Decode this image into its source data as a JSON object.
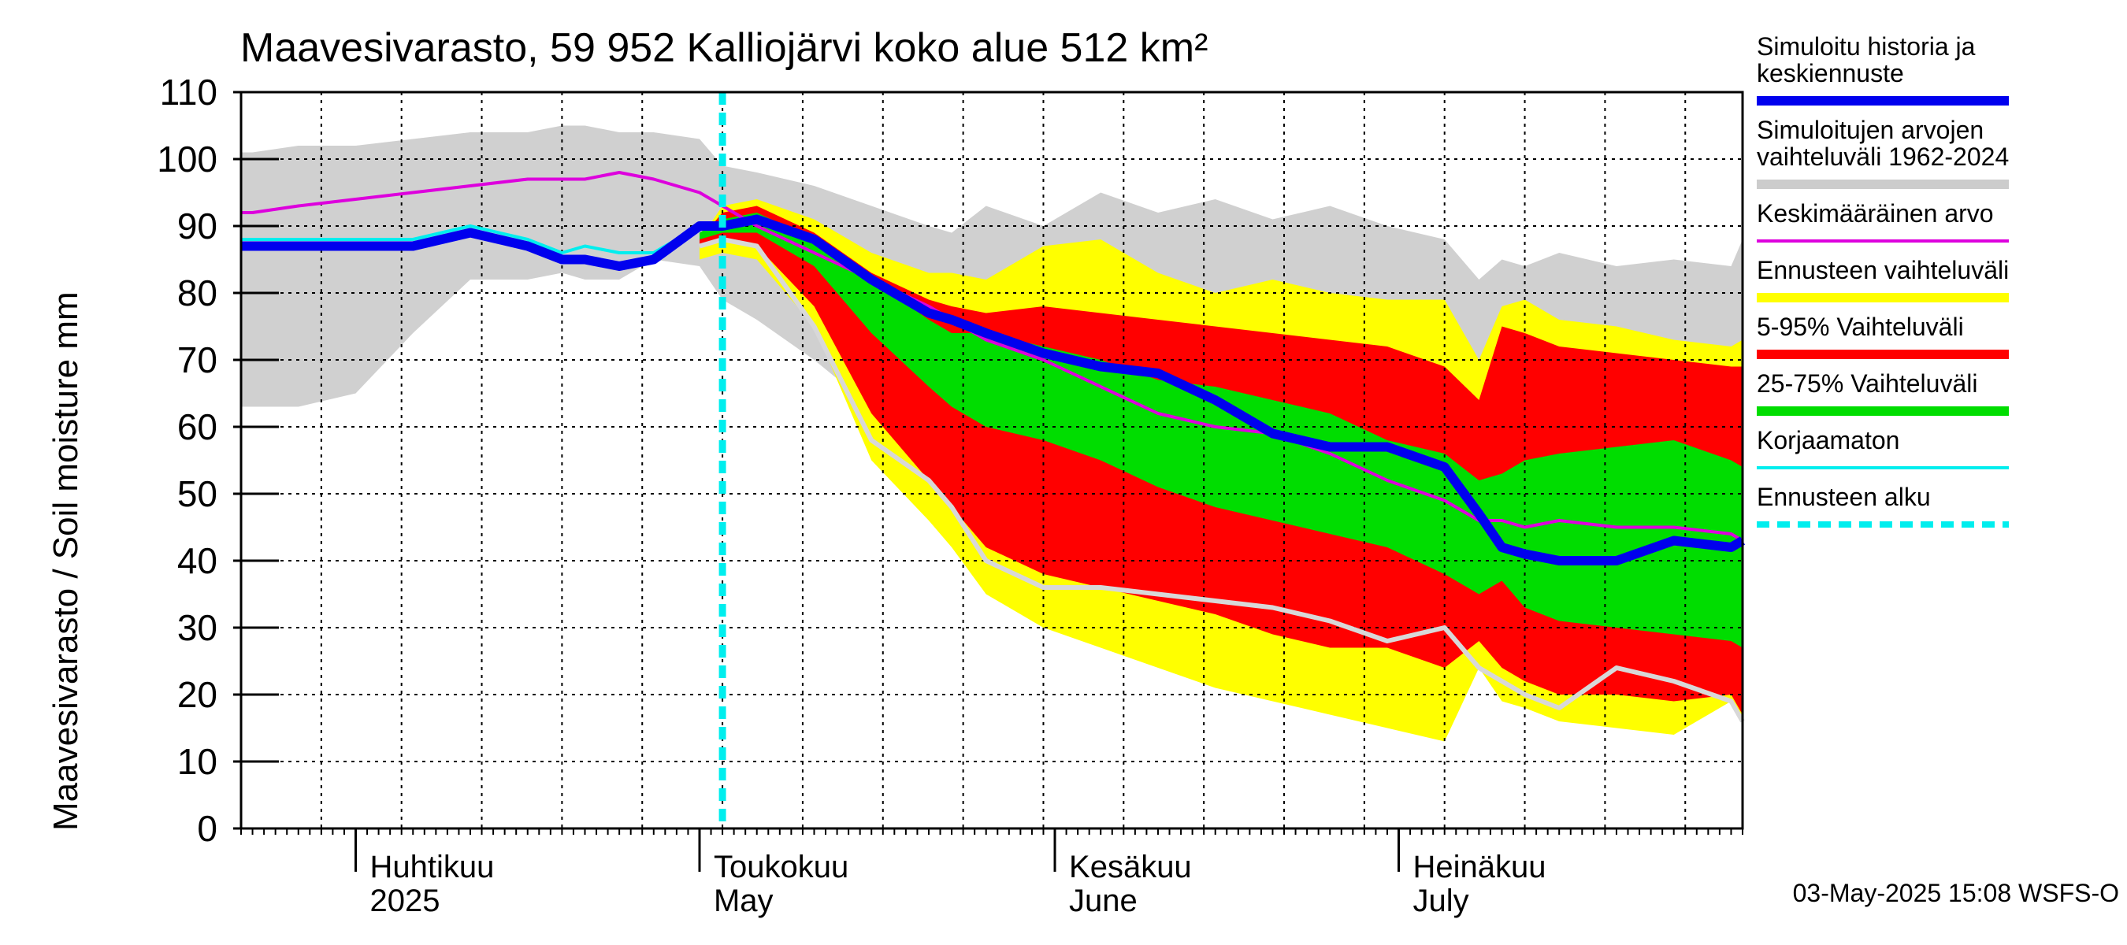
{
  "chart_data": {
    "type": "area",
    "title": "Maavesivarasto, 59 952 Kalliojärvi koko alue 512 km²",
    "ylabel": "Maavesivarasto / Soil moisture   mm",
    "ylim": [
      0,
      110
    ],
    "yticks": [
      0,
      10,
      20,
      30,
      40,
      50,
      60,
      70,
      80,
      90,
      100,
      110
    ],
    "xlim": [
      "2025-03-22",
      "2025-07-31"
    ],
    "forecast_start": "2025-05-03",
    "month_labels": [
      {
        "fi": "Huhtikuu",
        "en": "2025",
        "date": "2025-04-01"
      },
      {
        "fi": "Toukokuu",
        "en": "May",
        "date": "2025-05-01"
      },
      {
        "fi": "Kesäkuu",
        "en": "June",
        "date": "2025-06-01"
      },
      {
        "fi": "Heinäkuu",
        "en": "July",
        "date": "2025-07-01"
      }
    ],
    "x_days": [
      0,
      1,
      5,
      10,
      15,
      20,
      25,
      28,
      30,
      33,
      36,
      40,
      42,
      45,
      50,
      55,
      60,
      62,
      65,
      70,
      75,
      80,
      85,
      90,
      95,
      100,
      105,
      108,
      110,
      112,
      115,
      120,
      125,
      130,
      131
    ],
    "series": [
      {
        "name": "historical_range",
        "color": "#d0d0d0",
        "upper": [
          101,
          101,
          102,
          102,
          103,
          104,
          104,
          105,
          105,
          104,
          104,
          103,
          99,
          98,
          96,
          93,
          90,
          89,
          93,
          90,
          95,
          92,
          94,
          91,
          93,
          90,
          88,
          82,
          85,
          84,
          86,
          84,
          85,
          84,
          88
        ],
        "lower": [
          63,
          63,
          63,
          65,
          74,
          82,
          82,
          83,
          82,
          82,
          85,
          84,
          79,
          76,
          70,
          63,
          58,
          56,
          55,
          55,
          52,
          51,
          48,
          47,
          46,
          44,
          44,
          42,
          42,
          42,
          41,
          41,
          40,
          40,
          40
        ]
      },
      {
        "name": "forecast_range",
        "color": "#ffff00",
        "upper": [
          null,
          null,
          null,
          null,
          null,
          null,
          null,
          null,
          null,
          null,
          null,
          88,
          93,
          94,
          91,
          86,
          83,
          83,
          82,
          87,
          88,
          83,
          80,
          82,
          80,
          79,
          79,
          70,
          78,
          79,
          76,
          75,
          73,
          72,
          73
        ],
        "lower": [
          null,
          null,
          null,
          null,
          null,
          null,
          null,
          null,
          null,
          null,
          null,
          85,
          86,
          85,
          75,
          55,
          46,
          42,
          35,
          30,
          27,
          24,
          21,
          19,
          17,
          15,
          13,
          24,
          19,
          18,
          16,
          15,
          14,
          19,
          16
        ]
      },
      {
        "name": "p5_95",
        "color": "#ff0000",
        "upper": [
          null,
          null,
          null,
          null,
          null,
          null,
          null,
          null,
          null,
          null,
          null,
          88,
          92,
          93,
          89,
          83,
          79,
          78,
          77,
          78,
          77,
          76,
          75,
          74,
          73,
          72,
          69,
          64,
          75,
          74,
          72,
          71,
          70,
          69,
          69
        ],
        "lower": [
          null,
          null,
          null,
          null,
          null,
          null,
          null,
          null,
          null,
          null,
          null,
          87,
          88,
          87,
          78,
          62,
          52,
          48,
          42,
          38,
          36,
          34,
          32,
          29,
          27,
          27,
          24,
          28,
          24,
          22,
          20,
          20,
          19,
          20,
          17
        ]
      },
      {
        "name": "p25_75",
        "color": "#00dd00",
        "upper": [
          null,
          null,
          null,
          null,
          null,
          null,
          null,
          null,
          null,
          null,
          null,
          89,
          91,
          92,
          88,
          82,
          76,
          74,
          74,
          72,
          70,
          67,
          66,
          64,
          62,
          58,
          56,
          52,
          53,
          55,
          56,
          57,
          58,
          55,
          54
        ],
        "lower": [
          null,
          null,
          null,
          null,
          null,
          null,
          null,
          null,
          null,
          null,
          null,
          88,
          89,
          89,
          84,
          74,
          66,
          63,
          60,
          58,
          55,
          51,
          48,
          46,
          44,
          42,
          38,
          35,
          37,
          33,
          31,
          30,
          29,
          28,
          27
        ]
      },
      {
        "name": "Keskimääräinen arvo",
        "color": "#dd00dd",
        "values": [
          92,
          92,
          93,
          94,
          95,
          96,
          97,
          97,
          97,
          98,
          97,
          95,
          93,
          90,
          86,
          82,
          78,
          76,
          73,
          70,
          66,
          62,
          60,
          59,
          56,
          52,
          49,
          46,
          46,
          45,
          46,
          45,
          45,
          44,
          43
        ]
      },
      {
        "name": "Korjaamaton",
        "color": "#00eeee",
        "values": [
          88,
          88,
          88,
          88,
          88,
          90,
          88,
          86,
          87,
          86,
          86,
          90,
          null,
          null,
          null,
          null,
          null,
          null,
          null,
          null,
          null,
          null,
          null,
          null,
          null,
          null,
          null,
          null,
          null,
          null,
          null,
          null,
          null,
          null,
          null
        ]
      },
      {
        "name": "Simuloitu historia ja keskiennuste",
        "color": "#0000ee",
        "values": [
          87,
          87,
          87,
          87,
          87,
          89,
          87,
          85,
          85,
          84,
          85,
          90,
          90,
          91,
          88,
          82,
          77,
          76,
          74,
          71,
          69,
          68,
          64,
          59,
          57,
          57,
          54,
          47,
          42,
          41,
          40,
          40,
          43,
          42,
          43
        ]
      },
      {
        "name": "unadjusted_min",
        "color": "#d8d8d8",
        "values": [
          null,
          null,
          null,
          null,
          null,
          null,
          null,
          null,
          null,
          null,
          null,
          87,
          88,
          87,
          75,
          58,
          52,
          48,
          40,
          36,
          36,
          35,
          34,
          33,
          31,
          28,
          30,
          24,
          22,
          20,
          18,
          24,
          22,
          19,
          16
        ]
      }
    ],
    "legend": [
      {
        "label": "Simuloitu historia ja keskiennuste",
        "color": "#0000ee",
        "style": "thick"
      },
      {
        "label": "Simuloitujen arvojen vaihteluväli 1962-2024",
        "color": "#cccccc",
        "style": "thick"
      },
      {
        "label": "Keskimääräinen arvo",
        "color": "#dd00dd",
        "style": "line"
      },
      {
        "label": "Ennusteen vaihteluväli",
        "color": "#ffff00",
        "style": "thick"
      },
      {
        "label": "5-95% Vaihteluväli",
        "color": "#ff0000",
        "style": "thick"
      },
      {
        "label": "25-75% Vaihteluväli",
        "color": "#00dd00",
        "style": "thick"
      },
      {
        "label": "Korjaamaton",
        "color": "#00eeee",
        "style": "line"
      },
      {
        "label": "Ennusteen alku",
        "color": "#00eeee",
        "style": "dashed"
      }
    ],
    "footer": "03-May-2025 15:08 WSFS-O"
  }
}
